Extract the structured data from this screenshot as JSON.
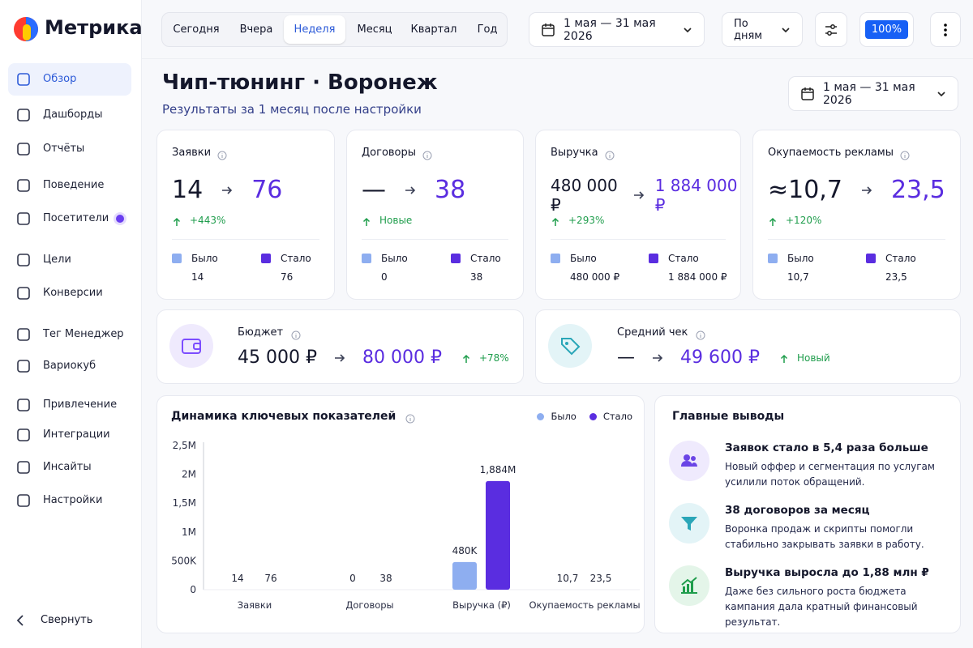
{
  "sidebar": {
    "brand": "Метрика",
    "items": [
      "Обзор",
      "Дашборды",
      "Отчёты",
      "Поведение",
      "Посетители",
      "Цели",
      "Конверсии",
      "Тег Менеджер",
      "Вариокуб",
      "Привлечение",
      "Интеграции",
      "Инсайты",
      "Настройки"
    ],
    "collapse": "Свернуть"
  },
  "topbar": {
    "periods": [
      "Сегодня",
      "Вчера",
      "Неделя",
      "Месяц",
      "Квартал",
      "Год"
    ],
    "date_range": "1 мая — 31 мая 2026",
    "grouping": "По дням",
    "zoom": "100%"
  },
  "header": {
    "title": "Чип-тюнинг · Воронеж",
    "subtitle": "Результаты за 1 месяц после настройки",
    "date_range": "1 мая — 31 мая 2026"
  },
  "kpi_legend": [
    "Было",
    "Стало"
  ],
  "kpis": [
    {
      "label": "Заявки",
      "before": "14",
      "after": "76",
      "change": "+443%"
    },
    {
      "label": "Договоры",
      "before": "—",
      "after": "38",
      "change": "Новые",
      "before_value": "0"
    },
    {
      "label": "Выручка",
      "before": "480 000 ₽",
      "after": "1 884 000 ₽",
      "change": "+293%"
    },
    {
      "label": "Окупаемость рекламы",
      "before": "≈10,7",
      "after": "23,5",
      "change": "+120%",
      "before_value": "10,7"
    }
  ],
  "summary": [
    {
      "label": "Бюджет",
      "before": "45 000 ₽",
      "after": "80 000 ₽",
      "change": "+78%"
    },
    {
      "label": "Средний чек",
      "before": "—",
      "after": "49 600 ₽",
      "change": "Новый"
    }
  ],
  "chart_data": {
    "type": "bar",
    "title": "Динамика ключевых показателей",
    "categories": [
      "Заявки",
      "Договоры",
      "Выручка (₽)",
      "Окупаемость рекламы"
    ],
    "series": [
      {
        "name": "Было",
        "color": "#8eaef0",
        "values": [
          14,
          0,
          480000,
          10.7
        ],
        "value_labels": [
          "14",
          "0",
          "480K",
          "10,7"
        ]
      },
      {
        "name": "Стало",
        "color": "#5a2de0",
        "values": [
          76,
          38,
          1884000,
          23.5
        ],
        "value_labels": [
          "76",
          "38",
          "1,884M",
          "23,5"
        ]
      }
    ],
    "ylim": [
      0,
      2500000
    ],
    "yticks": [
      0,
      {
        "value": 500000,
        "label": "500K"
      },
      {
        "value": 1000000,
        "label": "1M"
      },
      {
        "value": 1500000,
        "label": "1,5M"
      },
      {
        "value": 2000000,
        "label": "2M"
      },
      {
        "value": 2500000,
        "label": "2,5M"
      }
    ],
    "grid": false,
    "legend": "top-right"
  },
  "insights": {
    "title": "Главные выводы",
    "items": [
      {
        "title": "Заявок стало в 5,4 раза больше",
        "text": "Новый оффер и сегментация по услугам усилили поток обращений."
      },
      {
        "title": "38 договоров за месяц",
        "text": "Воронка продаж и скрипты помогли стабильно закрывать заявки в работу."
      },
      {
        "title": "Выручка выросла до 1,88 млн ₽",
        "text": "Даже без сильного роста бюджета кампания дала кратный финансовый результат."
      }
    ]
  }
}
